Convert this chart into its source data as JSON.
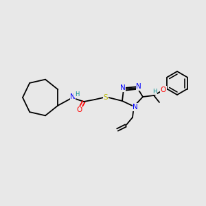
{
  "bg_color": "#e8e8e8",
  "bond_color": "#000000",
  "atom_colors": {
    "N": "#0000ff",
    "O": "#ff0000",
    "S": "#b8b800",
    "H_label": "#008b8b",
    "C": "#000000"
  },
  "font_size_atoms": 7.5,
  "font_size_small": 6.0,
  "lw": 1.3
}
